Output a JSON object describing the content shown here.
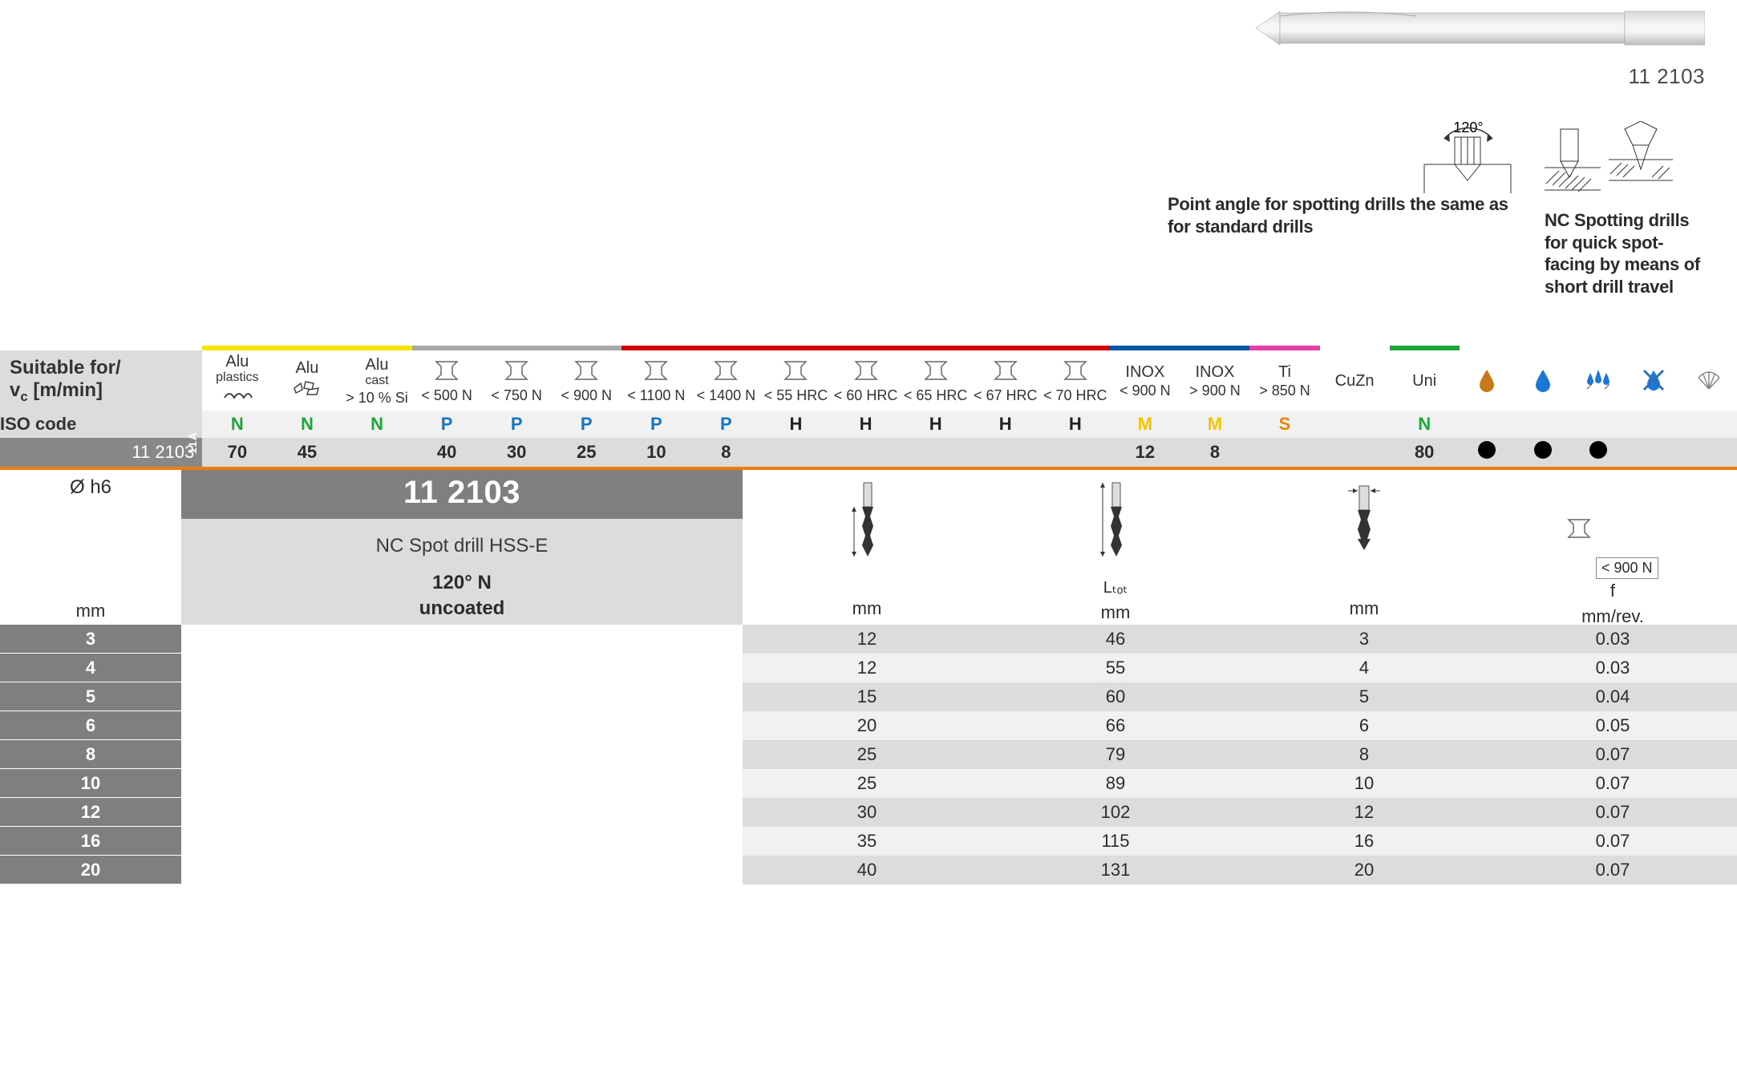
{
  "product_code": "11 2103",
  "callouts": {
    "angle_label": "120°",
    "left_text": "Point angle for spotting drills the same as for standard drills",
    "right_text": "NC Spotting drills for quick spot-facing by means of short drill travel"
  },
  "colors": {
    "band_yellow": "#f5e400",
    "band_grey": "#a7a7a7",
    "band_red": "#d40000",
    "band_blue": "#0058a9",
    "band_magenta": "#e23ea5",
    "band_green": "#1fa63a",
    "orange_rule": "#f07d00",
    "row_grey_dark": "#7f7f7f",
    "row_grey_light": "#dcdcdc",
    "row_grey_pale": "#f1f1f1",
    "drop_amber": "#c87a18",
    "drop_blue": "#1a78d6"
  },
  "suitability": {
    "header_label_line1": "Suitable for/",
    "header_label_line2": "v",
    "header_label_line2_sub": "c",
    "header_label_line2_tail": " [m/min]",
    "iso_label": "ISO code",
    "row_code": "11 2103",
    "materials": [
      {
        "name": "Alu",
        "sub": "plastics",
        "spec": "",
        "iso": "N",
        "iso_cls": "iso-N",
        "val": "70",
        "band": "band_yellow",
        "icon": "alu-plastics"
      },
      {
        "name": "Alu",
        "sub": "",
        "spec": "",
        "iso": "N",
        "iso_cls": "iso-N",
        "val": "45",
        "band": "band_yellow",
        "icon": "alu-chips"
      },
      {
        "name": "Alu",
        "sub": "cast",
        "spec": "> 10 % Si",
        "iso": "N",
        "iso_cls": "iso-N",
        "val": "",
        "band": "band_yellow",
        "icon": ""
      },
      {
        "name": "",
        "sub": "",
        "spec": "< 500 N",
        "iso": "P",
        "iso_cls": "iso-P",
        "val": "40",
        "band": "band_grey",
        "icon": "ibeam"
      },
      {
        "name": "",
        "sub": "",
        "spec": "< 750 N",
        "iso": "P",
        "iso_cls": "iso-P",
        "val": "30",
        "band": "band_grey",
        "icon": "ibeam"
      },
      {
        "name": "",
        "sub": "",
        "spec": "< 900 N",
        "iso": "P",
        "iso_cls": "iso-P",
        "val": "25",
        "band": "band_grey",
        "icon": "ibeam"
      },
      {
        "name": "",
        "sub": "",
        "spec": "< 1100 N",
        "iso": "P",
        "iso_cls": "iso-P",
        "val": "10",
        "band": "band_red",
        "icon": "ibeam"
      },
      {
        "name": "",
        "sub": "",
        "spec": "< 1400 N",
        "iso": "P",
        "iso_cls": "iso-P",
        "val": "8",
        "band": "band_red",
        "icon": "ibeam"
      },
      {
        "name": "",
        "sub": "",
        "spec": "< 55 HRC",
        "iso": "H",
        "iso_cls": "iso-H",
        "val": "",
        "band": "band_red",
        "icon": "ibeam"
      },
      {
        "name": "",
        "sub": "",
        "spec": "< 60 HRC",
        "iso": "H",
        "iso_cls": "iso-H",
        "val": "",
        "band": "band_red",
        "icon": "ibeam"
      },
      {
        "name": "",
        "sub": "",
        "spec": "< 65 HRC",
        "iso": "H",
        "iso_cls": "iso-H",
        "val": "",
        "band": "band_red",
        "icon": "ibeam"
      },
      {
        "name": "",
        "sub": "",
        "spec": "< 67 HRC",
        "iso": "H",
        "iso_cls": "iso-H",
        "val": "",
        "band": "band_red",
        "icon": "ibeam"
      },
      {
        "name": "",
        "sub": "",
        "spec": "< 70 HRC",
        "iso": "H",
        "iso_cls": "iso-H",
        "val": "",
        "band": "band_red",
        "icon": "ibeam"
      },
      {
        "name": "INOX",
        "sub": "",
        "spec": "< 900 N",
        "iso": "M",
        "iso_cls": "iso-M",
        "val": "12",
        "band": "band_blue",
        "icon": ""
      },
      {
        "name": "INOX",
        "sub": "",
        "spec": "> 900 N",
        "iso": "M",
        "iso_cls": "iso-M",
        "val": "8",
        "band": "band_blue",
        "icon": ""
      },
      {
        "name": "Ti",
        "sub": "",
        "spec": "> 850 N",
        "iso": "S",
        "iso_cls": "iso-S",
        "val": "",
        "band": "band_magenta",
        "icon": ""
      },
      {
        "name": "CuZn",
        "sub": "",
        "spec": "",
        "iso": "",
        "iso_cls": "",
        "val": "",
        "band": "",
        "icon": ""
      },
      {
        "name": "Uni",
        "sub": "",
        "spec": "",
        "iso": "N",
        "iso_cls": "iso-N",
        "val": "80",
        "band": "band_green",
        "icon": ""
      }
    ],
    "options": [
      {
        "icon": "drop-amber",
        "val": "dot"
      },
      {
        "icon": "drop-blue",
        "val": "dot"
      },
      {
        "icon": "drops-multi",
        "val": "dot"
      },
      {
        "icon": "drop-crossed",
        "val": ""
      },
      {
        "icon": "shell",
        "val": ""
      }
    ]
  },
  "dimensions": {
    "diameter_label": "Ø h6",
    "unit": "mm",
    "badge": "11A",
    "title": "11 2103",
    "description": "NC Spot drill HSS-E",
    "angle": "120° N",
    "coating": "uncoated",
    "columns": [
      {
        "key": "d2",
        "unit": "mm",
        "icon": "flute-length"
      },
      {
        "key": "ltot",
        "unit": "mm",
        "icon": "total-length",
        "sublabel": "Lₜₒₜ"
      },
      {
        "key": "shank",
        "unit": "mm",
        "icon": "shank"
      },
      {
        "key": "feed",
        "unit": "mm/rev.",
        "icon": "f-badge",
        "f_spec": "< 900 N",
        "f_label": "f"
      }
    ],
    "rows": [
      {
        "size": "3",
        "vals": [
          "12",
          "46",
          "3",
          "0.03"
        ]
      },
      {
        "size": "4",
        "vals": [
          "12",
          "55",
          "4",
          "0.03"
        ]
      },
      {
        "size": "5",
        "vals": [
          "15",
          "60",
          "5",
          "0.04"
        ]
      },
      {
        "size": "6",
        "vals": [
          "20",
          "66",
          "6",
          "0.05"
        ]
      },
      {
        "size": "8",
        "vals": [
          "25",
          "79",
          "8",
          "0.07"
        ]
      },
      {
        "size": "10",
        "vals": [
          "25",
          "89",
          "10",
          "0.07"
        ]
      },
      {
        "size": "12",
        "vals": [
          "30",
          "102",
          "12",
          "0.07"
        ]
      },
      {
        "size": "16",
        "vals": [
          "35",
          "115",
          "16",
          "0.07"
        ]
      },
      {
        "size": "20",
        "vals": [
          "40",
          "131",
          "20",
          "0.07"
        ]
      }
    ]
  }
}
